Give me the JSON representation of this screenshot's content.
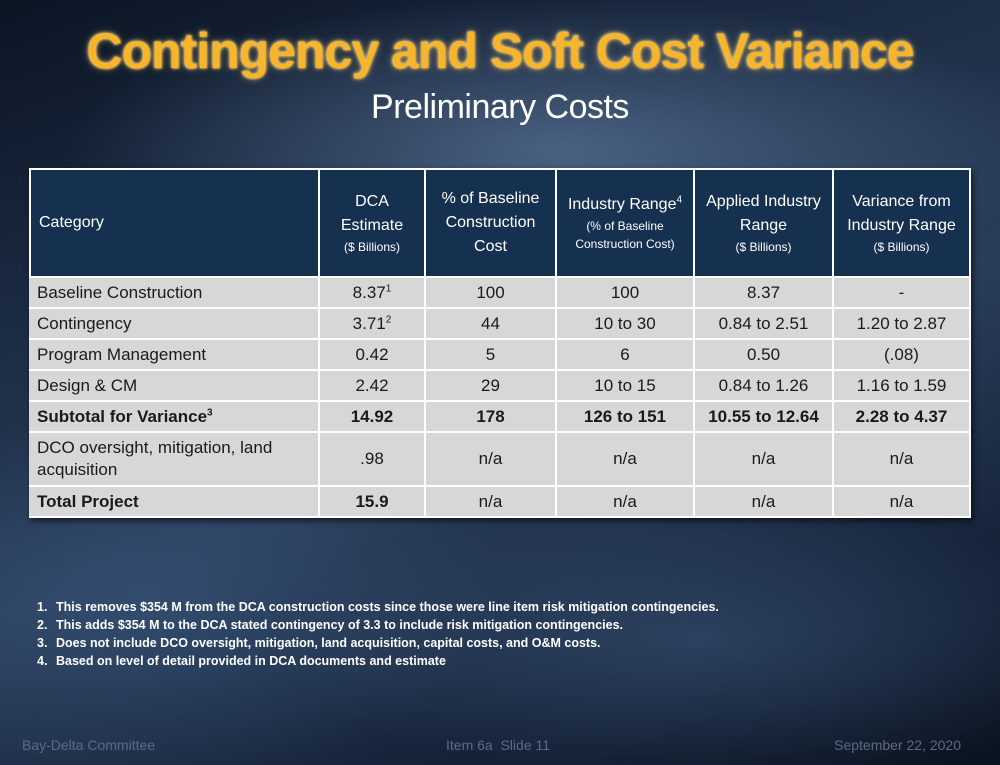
{
  "title": "Contingency and Soft Cost Variance",
  "subtitle": "Preliminary Costs",
  "table": {
    "headers": {
      "category": "Category",
      "dca_estimate": "DCA Estimate",
      "dca_estimate_unit": "($ Billions)",
      "pct_baseline": "% of Baseline Construction Cost",
      "industry_range": "Industry Range",
      "industry_range_sup": "4",
      "industry_range_unit": "(% of Baseline Construction Cost)",
      "applied_range": "Applied Industry Range",
      "applied_range_unit": "($ Billions)",
      "variance": "Variance from Industry Range",
      "variance_unit": "($ Billions)"
    },
    "rows": [
      {
        "category": "Baseline Construction",
        "category_sup": "",
        "dca": "8.37",
        "dca_sup": "1",
        "pct": "100",
        "industry": "100",
        "applied": "8.37",
        "variance": "-"
      },
      {
        "category": "Contingency",
        "category_sup": "",
        "dca": "3.71",
        "dca_sup": "2",
        "pct": "44",
        "industry": "10 to 30",
        "applied": "0.84 to 2.51",
        "variance": "1.20 to 2.87"
      },
      {
        "category": "Program Management",
        "category_sup": "",
        "dca": "0.42",
        "dca_sup": "",
        "pct": "5",
        "industry": "6",
        "applied": "0.50",
        "variance": "(.08)"
      },
      {
        "category": "Design & CM",
        "category_sup": "",
        "dca": "2.42",
        "dca_sup": "",
        "pct": "29",
        "industry": "10 to 15",
        "applied": "0.84 to 1.26",
        "variance": "1.16 to 1.59"
      },
      {
        "category": "Subtotal for Variance",
        "category_sup": "3",
        "dca": "14.92",
        "dca_sup": "",
        "pct": "178",
        "industry": "126 to 151",
        "applied": "10.55 to 12.64",
        "variance": "2.28 to 4.37"
      },
      {
        "category": "DCO oversight, mitigation, land acquisition",
        "category_sup": "",
        "dca": ".98",
        "dca_sup": "",
        "pct": "n/a",
        "industry": "n/a",
        "applied": "n/a",
        "variance": "n/a"
      },
      {
        "category": "Total Project",
        "category_sup": "",
        "dca": "15.9",
        "dca_sup": "",
        "pct": "n/a",
        "industry": "n/a",
        "applied": "n/a",
        "variance": "n/a"
      }
    ]
  },
  "footnotes": [
    {
      "num": "1.",
      "text": "This removes $354 M from the DCA construction costs since those were line item risk mitigation contingencies."
    },
    {
      "num": "2.",
      "text": "This adds $354 M to the DCA stated contingency of 3.3 to include risk mitigation contingencies."
    },
    {
      "num": "3.",
      "text": "Does not include DCO oversight, mitigation, land acquisition, capital costs, and O&M costs."
    },
    {
      "num": "4.",
      "text": "Based on level of detail provided in DCA documents and estimate"
    }
  ],
  "footer": {
    "left": "Bay-Delta Committee",
    "center": "Item 6a  Slide 11",
    "right": "September 22, 2020"
  }
}
